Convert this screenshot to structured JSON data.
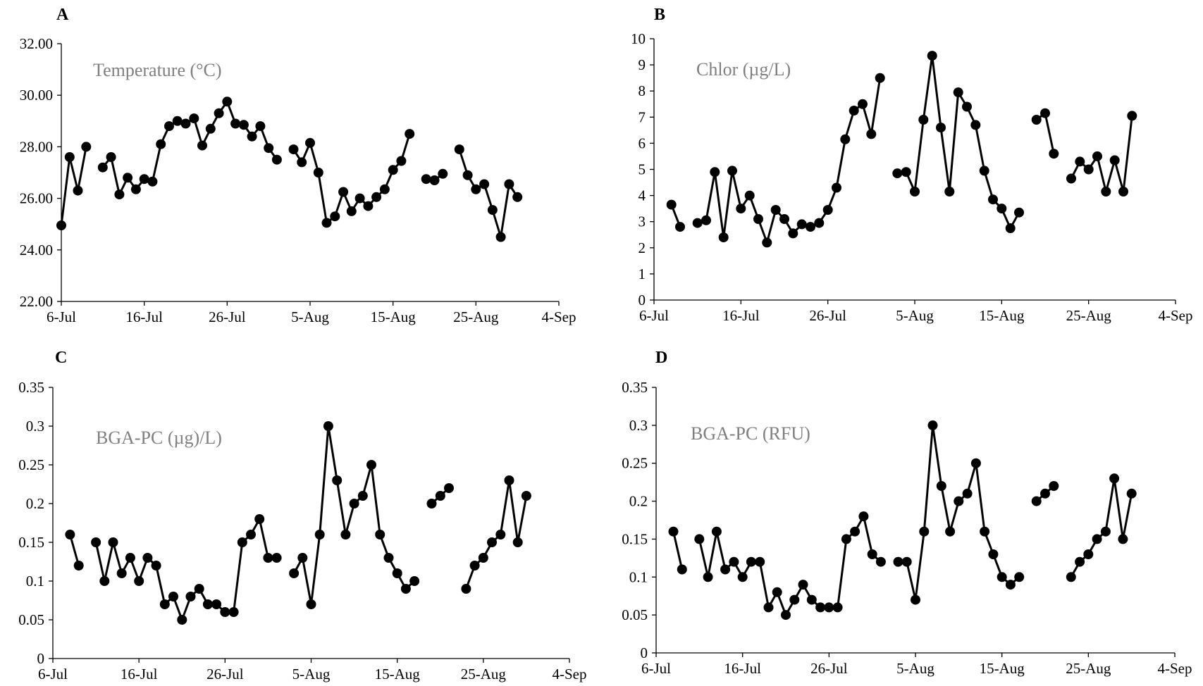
{
  "chart_data": [
    {
      "type": "line",
      "panel_label": "A",
      "title": "Temperature (°C)",
      "ylim": [
        22,
        32
      ],
      "yticks": [
        "22.00",
        "24.00",
        "26.00",
        "28.00",
        "30.00",
        "32.00"
      ],
      "ytick_values": [
        22,
        24,
        26,
        28,
        30,
        32
      ],
      "xticks": [
        "6-Jul",
        "16-Jul",
        "26-Jul",
        "5-Aug",
        "15-Aug",
        "25-Aug",
        "4-Sep"
      ],
      "xtick_values": [
        0,
        10,
        20,
        30,
        40,
        50,
        60
      ],
      "segments": [
        [
          [
            0,
            24.95
          ],
          [
            1,
            27.6
          ],
          [
            2,
            26.3
          ],
          [
            3,
            28.0
          ]
        ],
        [
          [
            5,
            27.2
          ],
          [
            6,
            27.6
          ],
          [
            7,
            26.15
          ],
          [
            8,
            26.8
          ],
          [
            9,
            26.35
          ],
          [
            10,
            26.75
          ],
          [
            11,
            26.65
          ],
          [
            12,
            28.1
          ],
          [
            13,
            28.8
          ],
          [
            14,
            29.0
          ],
          [
            15,
            28.9
          ],
          [
            16,
            29.1
          ],
          [
            17,
            28.05
          ],
          [
            18,
            28.7
          ],
          [
            19,
            29.3
          ],
          [
            20,
            29.75
          ],
          [
            21,
            28.9
          ],
          [
            22,
            28.85
          ],
          [
            23,
            28.4
          ],
          [
            24,
            28.8
          ],
          [
            25,
            27.95
          ],
          [
            26,
            27.5
          ]
        ],
        [
          [
            28,
            27.9
          ],
          [
            29,
            27.4
          ],
          [
            30,
            28.15
          ],
          [
            31,
            27.0
          ],
          [
            32,
            25.05
          ],
          [
            33,
            25.3
          ],
          [
            34,
            26.25
          ],
          [
            35,
            25.5
          ],
          [
            36,
            26.0
          ],
          [
            37,
            25.7
          ],
          [
            38,
            26.05
          ],
          [
            39,
            26.35
          ],
          [
            40,
            27.1
          ],
          [
            41,
            27.45
          ],
          [
            42,
            28.5
          ]
        ],
        [
          [
            44,
            26.75
          ],
          [
            45,
            26.7
          ],
          [
            46,
            26.95
          ]
        ],
        [
          [
            48,
            27.9
          ],
          [
            49,
            26.9
          ],
          [
            50,
            26.35
          ],
          [
            51,
            26.55
          ],
          [
            52,
            25.55
          ],
          [
            53,
            24.5
          ],
          [
            54,
            26.55
          ],
          [
            55,
            26.05
          ]
        ]
      ]
    },
    {
      "type": "line",
      "panel_label": "B",
      "title": "Chlor (µg/L)",
      "ylim": [
        0,
        10
      ],
      "yticks": [
        "0",
        "1",
        "2",
        "3",
        "4",
        "5",
        "6",
        "7",
        "8",
        "9",
        "10"
      ],
      "ytick_values": [
        0,
        1,
        2,
        3,
        4,
        5,
        6,
        7,
        8,
        9,
        10
      ],
      "xticks": [
        "6-Jul",
        "16-Jul",
        "26-Jul",
        "5-Aug",
        "15-Aug",
        "25-Aug",
        "4-Sep"
      ],
      "xtick_values": [
        0,
        10,
        20,
        30,
        40,
        50,
        60
      ],
      "segments": [
        [
          [
            2,
            3.65
          ],
          [
            3,
            2.8
          ]
        ],
        [
          [
            5,
            2.95
          ],
          [
            6,
            3.05
          ],
          [
            7,
            4.9
          ],
          [
            8,
            2.4
          ],
          [
            9,
            4.95
          ],
          [
            10,
            3.5
          ],
          [
            11,
            4.0
          ],
          [
            12,
            3.1
          ],
          [
            13,
            2.2
          ],
          [
            14,
            3.45
          ],
          [
            15,
            3.1
          ],
          [
            16,
            2.55
          ],
          [
            17,
            2.9
          ],
          [
            18,
            2.8
          ],
          [
            19,
            2.95
          ],
          [
            20,
            3.45
          ],
          [
            21,
            4.3
          ],
          [
            22,
            6.15
          ],
          [
            23,
            7.25
          ],
          [
            24,
            7.5
          ],
          [
            25,
            6.35
          ],
          [
            26,
            8.5
          ]
        ],
        [
          [
            28,
            4.85
          ],
          [
            29,
            4.9
          ],
          [
            30,
            4.15
          ],
          [
            31,
            6.9
          ],
          [
            32,
            9.35
          ],
          [
            33,
            6.6
          ],
          [
            34,
            4.15
          ],
          [
            35,
            7.95
          ],
          [
            36,
            7.4
          ],
          [
            37,
            6.7
          ],
          [
            38,
            4.95
          ],
          [
            39,
            3.85
          ],
          [
            40,
            3.5
          ],
          [
            41,
            2.75
          ],
          [
            42,
            3.35
          ]
        ],
        [
          [
            44,
            6.9
          ],
          [
            45,
            7.15
          ],
          [
            46,
            5.6
          ]
        ],
        [
          [
            48,
            4.65
          ],
          [
            49,
            5.3
          ],
          [
            50,
            5.0
          ],
          [
            51,
            5.5
          ],
          [
            52,
            4.15
          ],
          [
            53,
            5.35
          ],
          [
            54,
            4.15
          ],
          [
            55,
            7.05
          ]
        ]
      ]
    },
    {
      "type": "line",
      "panel_label": "C",
      "title": "BGA-PC (µg)/L)",
      "ylim": [
        0,
        0.35
      ],
      "yticks": [
        "0",
        "0.05",
        "0.1",
        "0.15",
        "0.2",
        "0.25",
        "0.3",
        "0.35"
      ],
      "ytick_values": [
        0,
        0.05,
        0.1,
        0.15,
        0.2,
        0.25,
        0.3,
        0.35
      ],
      "xticks": [
        "6-Jul",
        "16-Jul",
        "26-Jul",
        "5-Aug",
        "15-Aug",
        "25-Aug",
        "4-Sep"
      ],
      "xtick_values": [
        0,
        10,
        20,
        30,
        40,
        50,
        60
      ],
      "segments": [
        [
          [
            2,
            0.16
          ],
          [
            3,
            0.12
          ]
        ],
        [
          [
            5,
            0.15
          ],
          [
            6,
            0.1
          ],
          [
            7,
            0.15
          ],
          [
            8,
            0.11
          ],
          [
            9,
            0.13
          ],
          [
            10,
            0.1
          ],
          [
            11,
            0.13
          ],
          [
            12,
            0.12
          ],
          [
            13,
            0.07
          ],
          [
            14,
            0.08
          ],
          [
            15,
            0.05
          ],
          [
            16,
            0.08
          ],
          [
            17,
            0.09
          ],
          [
            18,
            0.07
          ],
          [
            19,
            0.07
          ],
          [
            20,
            0.06
          ],
          [
            21,
            0.06
          ],
          [
            22,
            0.15
          ],
          [
            23,
            0.16
          ],
          [
            24,
            0.18
          ],
          [
            25,
            0.13
          ],
          [
            26,
            0.13
          ]
        ],
        [
          [
            28,
            0.11
          ],
          [
            29,
            0.13
          ],
          [
            30,
            0.07
          ],
          [
            31,
            0.16
          ],
          [
            32,
            0.3
          ],
          [
            33,
            0.23
          ],
          [
            34,
            0.16
          ],
          [
            35,
            0.2
          ],
          [
            36,
            0.21
          ],
          [
            37,
            0.25
          ],
          [
            38,
            0.16
          ],
          [
            39,
            0.13
          ],
          [
            40,
            0.11
          ],
          [
            41,
            0.09
          ],
          [
            42,
            0.1
          ]
        ],
        [
          [
            44,
            0.2
          ],
          [
            45,
            0.21
          ],
          [
            46,
            0.22
          ]
        ],
        [
          [
            48,
            0.09
          ],
          [
            49,
            0.12
          ],
          [
            50,
            0.13
          ],
          [
            51,
            0.15
          ],
          [
            52,
            0.16
          ],
          [
            53,
            0.23
          ],
          [
            54,
            0.15
          ],
          [
            55,
            0.21
          ]
        ]
      ]
    },
    {
      "type": "line",
      "panel_label": "D",
      "title": "BGA-PC (RFU)",
      "ylim": [
        0,
        0.35
      ],
      "yticks": [
        "0",
        "0.05",
        "0.1",
        "0.15",
        "0.2",
        "0.25",
        "0.3",
        "0.35"
      ],
      "ytick_values": [
        0,
        0.05,
        0.1,
        0.15,
        0.2,
        0.25,
        0.3,
        0.35
      ],
      "xticks": [
        "6-Jul",
        "16-Jul",
        "26-Jul",
        "5-Aug",
        "15-Aug",
        "25-Aug",
        "4-Sep"
      ],
      "xtick_values": [
        0,
        10,
        20,
        30,
        40,
        50,
        60
      ],
      "segments": [
        [
          [
            2,
            0.16
          ],
          [
            3,
            0.11
          ]
        ],
        [
          [
            5,
            0.15
          ],
          [
            6,
            0.1
          ],
          [
            7,
            0.16
          ],
          [
            8,
            0.11
          ],
          [
            9,
            0.12
          ],
          [
            10,
            0.1
          ],
          [
            11,
            0.12
          ],
          [
            12,
            0.12
          ],
          [
            13,
            0.06
          ],
          [
            14,
            0.08
          ],
          [
            15,
            0.05
          ],
          [
            16,
            0.07
          ],
          [
            17,
            0.09
          ],
          [
            18,
            0.07
          ],
          [
            19,
            0.06
          ],
          [
            20,
            0.06
          ],
          [
            21,
            0.06
          ],
          [
            22,
            0.15
          ],
          [
            23,
            0.16
          ],
          [
            24,
            0.18
          ],
          [
            25,
            0.13
          ],
          [
            26,
            0.12
          ]
        ],
        [
          [
            28,
            0.12
          ],
          [
            29,
            0.12
          ],
          [
            30,
            0.07
          ],
          [
            31,
            0.16
          ],
          [
            32,
            0.3
          ],
          [
            33,
            0.22
          ],
          [
            34,
            0.16
          ],
          [
            35,
            0.2
          ],
          [
            36,
            0.21
          ],
          [
            37,
            0.25
          ],
          [
            38,
            0.16
          ],
          [
            39,
            0.13
          ],
          [
            40,
            0.1
          ],
          [
            41,
            0.09
          ],
          [
            42,
            0.1
          ]
        ],
        [
          [
            44,
            0.2
          ],
          [
            45,
            0.21
          ],
          [
            46,
            0.22
          ]
        ],
        [
          [
            48,
            0.1
          ],
          [
            49,
            0.12
          ],
          [
            50,
            0.13
          ],
          [
            51,
            0.15
          ],
          [
            52,
            0.16
          ],
          [
            53,
            0.23
          ],
          [
            54,
            0.15
          ],
          [
            55,
            0.21
          ]
        ]
      ]
    }
  ]
}
